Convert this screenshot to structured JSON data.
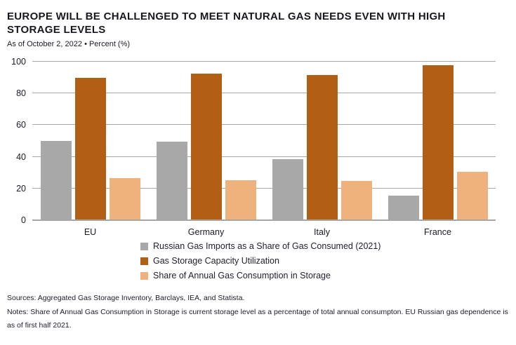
{
  "header": {
    "title": "EUROPE WILL BE CHALLENGED TO MEET NATURAL GAS NEEDS EVEN WITH HIGH STORAGE LEVELS",
    "subtitle": "As of October 2, 2022 • Percent (%)"
  },
  "chart_data": {
    "type": "bar",
    "title": "EUROPE WILL BE CHALLENGED TO MEET NATURAL GAS NEEDS EVEN WITH HIGH STORAGE LEVELS",
    "subtitle": "As of October 2, 2022 • Percent (%)",
    "categories": [
      "EU",
      "Germany",
      "Italy",
      "France"
    ],
    "series": [
      {
        "name": "Russian Gas Imports as a Share of Gas Consumed (2021)",
        "color": "#a8a8a8",
        "values": [
          49.5,
          49,
          38,
          15
        ]
      },
      {
        "name": "Gas Storage Capacity Utilization",
        "color": "#b25e14",
        "values": [
          89.5,
          92,
          91,
          97.5
        ]
      },
      {
        "name": "Share of Annual Gas Consumption in Storage",
        "color": "#f0b27c",
        "values": [
          26,
          25,
          24.5,
          30
        ]
      }
    ],
    "ylabel": "Percent (%)",
    "ylim": [
      0,
      100
    ],
    "yticks": [
      0,
      20,
      40,
      60,
      80,
      100
    ],
    "grid": "horizontal",
    "legend_position": "bottom",
    "gridline_color": "#a8a8a8",
    "axis_color": "#a6a6a6"
  },
  "footer": {
    "sources": "Sources: Aggregated Gas Storage Inventory, Barclays, IEA, and Statista.",
    "notes": "Notes: Share of Annual Gas Consumption in Storage is current storage level as a percentage of total annual consumpton. EU Russian gas dependence is as of first half 2021."
  }
}
